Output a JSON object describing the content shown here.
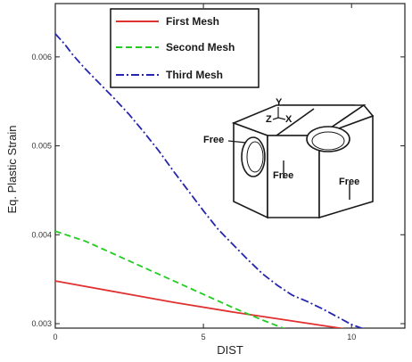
{
  "chart_data": {
    "type": "line",
    "xlabel": "DIST",
    "ylabel": "Eq. Plastic Strain",
    "xlim": [
      0,
      11.8
    ],
    "ylim": [
      0.00295,
      0.0066
    ],
    "x_ticks": [
      0,
      5,
      10
    ],
    "x_tick_labels": [
      "0",
      "5",
      "10"
    ],
    "y_ticks": [
      0.003,
      0.004,
      0.005,
      0.006
    ],
    "y_tick_labels": [
      "0.003",
      "0.004",
      "0.005",
      "0.006"
    ],
    "grid": false,
    "legend_position": "top-left",
    "series": [
      {
        "name": "First Mesh",
        "color": "#e03030",
        "style": "solid",
        "x": [
          0,
          2,
          4,
          6,
          8,
          10,
          11.2
        ],
        "y": [
          0.00348,
          0.00336,
          0.00324,
          0.00313,
          0.00303,
          0.00293,
          0.00287
        ]
      },
      {
        "name": "Second Mesh",
        "color": "#22cc22",
        "style": "dashed",
        "x": [
          0,
          1,
          2,
          3,
          4,
          5,
          6,
          7,
          8,
          8.8
        ],
        "y": [
          0.00404,
          0.00393,
          0.00378,
          0.00363,
          0.00348,
          0.00333,
          0.00318,
          0.00304,
          0.00291,
          0.00281
        ]
      },
      {
        "name": "Third Mesh",
        "color": "#2525b0",
        "style": "dashdot",
        "x": [
          0,
          0.3,
          0.6,
          1,
          1.5,
          2,
          2.5,
          3,
          3.5,
          4,
          4.5,
          5,
          5.5,
          6,
          6.5,
          7,
          7.5,
          8,
          8.5,
          9,
          9.5,
          10,
          10.5,
          11,
          11.3
        ],
        "y": [
          0.00626,
          0.00615,
          0.00602,
          0.00587,
          0.0057,
          0.00553,
          0.00535,
          0.00515,
          0.00494,
          0.00471,
          0.00449,
          0.00427,
          0.00406,
          0.00389,
          0.00372,
          0.00356,
          0.00343,
          0.00332,
          0.00325,
          0.00317,
          0.00308,
          0.00299,
          0.00293,
          0.00288,
          0.00285
        ]
      }
    ],
    "inset": {
      "axis_y": "Y",
      "axis_z": "Z",
      "axis_x": "X",
      "labels": [
        "Free",
        "Free",
        "Free"
      ]
    }
  }
}
